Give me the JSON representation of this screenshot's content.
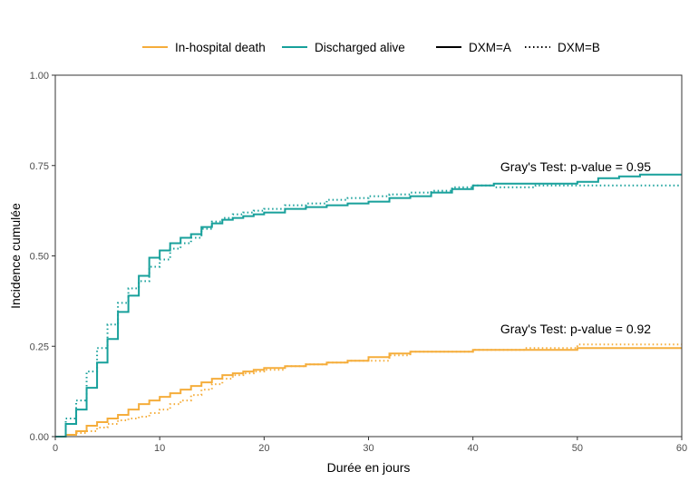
{
  "chart_data": {
    "type": "line",
    "step": true,
    "xlabel": "Durée en jours",
    "ylabel": "Incidence cumulée",
    "xlim": [
      0,
      60
    ],
    "ylim": [
      0,
      1
    ],
    "xticks": [
      0,
      10,
      20,
      30,
      40,
      50,
      60
    ],
    "yticks": [
      0,
      0.25,
      0.5,
      0.75,
      1
    ],
    "xtick_labels": [
      "0",
      "10",
      "20",
      "30",
      "40",
      "50",
      "60"
    ],
    "ytick_labels": [
      "0.00",
      "0.25",
      "0.50",
      "0.75",
      "1.00"
    ],
    "grid": false,
    "legend": {
      "position": "top",
      "color_entries": [
        {
          "label": "In-hospital death",
          "color": "#f5ad3b"
        },
        {
          "label": "Discharged alive",
          "color": "#17a09b"
        }
      ],
      "linetype_entries": [
        {
          "label": "DXM=A",
          "dash": "solid"
        },
        {
          "label": "DXM=B",
          "dash": "dotted"
        }
      ]
    },
    "annotations": [
      {
        "text": "Gray's Test: p-value =  0.95",
        "x": 52,
        "y": 0.74
      },
      {
        "text": "Gray's Test: p-value =  0.92",
        "x": 52,
        "y": 0.29
      }
    ],
    "series": [
      {
        "event": "Discharged alive",
        "group": "DXM=A",
        "color": "#17a09b",
        "dash": "solid",
        "x": [
          0,
          1,
          2,
          3,
          4,
          5,
          6,
          7,
          8,
          9,
          10,
          11,
          12,
          13,
          14,
          15,
          16,
          17,
          18,
          19,
          20,
          22,
          24,
          26,
          28,
          30,
          32,
          34,
          36,
          38,
          40,
          42,
          44,
          46,
          50,
          52,
          54,
          56,
          58,
          60
        ],
        "y": [
          0,
          0.035,
          0.075,
          0.135,
          0.205,
          0.27,
          0.345,
          0.39,
          0.445,
          0.495,
          0.515,
          0.535,
          0.55,
          0.56,
          0.58,
          0.59,
          0.6,
          0.605,
          0.61,
          0.615,
          0.62,
          0.63,
          0.635,
          0.64,
          0.645,
          0.65,
          0.66,
          0.665,
          0.675,
          0.685,
          0.695,
          0.7,
          0.7,
          0.7,
          0.705,
          0.715,
          0.72,
          0.725,
          0.725,
          0.725
        ]
      },
      {
        "event": "Discharged alive",
        "group": "DXM=B",
        "color": "#17a09b",
        "dash": "dotted",
        "x": [
          0,
          1,
          2,
          3,
          4,
          5,
          6,
          7,
          8,
          9,
          10,
          11,
          12,
          13,
          14,
          15,
          16,
          17,
          18,
          19,
          20,
          22,
          24,
          26,
          28,
          30,
          32,
          34,
          36,
          38,
          40,
          42,
          44,
          46,
          50,
          52,
          54,
          56,
          58,
          60
        ],
        "y": [
          0,
          0.05,
          0.1,
          0.18,
          0.245,
          0.31,
          0.37,
          0.41,
          0.43,
          0.47,
          0.49,
          0.52,
          0.535,
          0.55,
          0.575,
          0.595,
          0.605,
          0.615,
          0.62,
          0.625,
          0.63,
          0.64,
          0.645,
          0.655,
          0.66,
          0.665,
          0.67,
          0.675,
          0.68,
          0.69,
          0.695,
          0.69,
          0.69,
          0.695,
          0.695,
          0.695,
          0.695,
          0.695,
          0.695,
          0.695
        ]
      },
      {
        "event": "In-hospital death",
        "group": "DXM=A",
        "color": "#f5ad3b",
        "dash": "solid",
        "x": [
          0,
          1,
          2,
          3,
          4,
          5,
          6,
          7,
          8,
          9,
          10,
          11,
          12,
          13,
          14,
          15,
          16,
          17,
          18,
          19,
          20,
          22,
          24,
          26,
          28,
          30,
          32,
          34,
          36,
          40,
          45,
          50,
          55,
          60
        ],
        "y": [
          0,
          0.005,
          0.015,
          0.03,
          0.04,
          0.05,
          0.06,
          0.075,
          0.09,
          0.1,
          0.11,
          0.12,
          0.13,
          0.14,
          0.15,
          0.16,
          0.17,
          0.175,
          0.18,
          0.185,
          0.19,
          0.195,
          0.2,
          0.205,
          0.21,
          0.22,
          0.23,
          0.235,
          0.235,
          0.24,
          0.24,
          0.245,
          0.245,
          0.245
        ]
      },
      {
        "event": "In-hospital death",
        "group": "DXM=B",
        "color": "#f5ad3b",
        "dash": "dotted",
        "x": [
          0,
          1,
          2,
          3,
          4,
          5,
          6,
          7,
          8,
          9,
          10,
          11,
          12,
          13,
          14,
          15,
          16,
          17,
          18,
          19,
          20,
          22,
          24,
          26,
          28,
          30,
          32,
          34,
          36,
          40,
          45,
          50,
          55,
          60
        ],
        "y": [
          0,
          0.005,
          0.01,
          0.015,
          0.025,
          0.035,
          0.045,
          0.05,
          0.055,
          0.065,
          0.075,
          0.09,
          0.1,
          0.115,
          0.13,
          0.145,
          0.16,
          0.17,
          0.175,
          0.18,
          0.185,
          0.195,
          0.2,
          0.205,
          0.21,
          0.21,
          0.225,
          0.235,
          0.235,
          0.24,
          0.245,
          0.255,
          0.255,
          0.255
        ]
      }
    ]
  }
}
